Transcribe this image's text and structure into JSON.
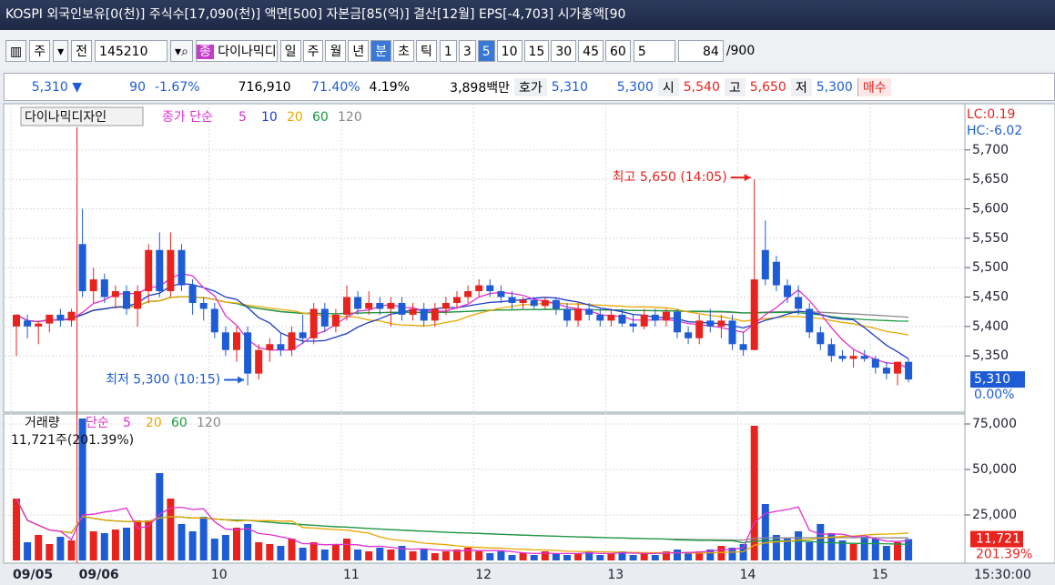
{
  "title_bar": {
    "text": "KOSPI 외국인보유[0(천)] 주식수[17,090(천)] 액면[500] 자본금[85(억)] 결산[12월] EPS[-4,703] 시가총액[90"
  },
  "toolbar": {
    "period_type": "주",
    "adj": "전",
    "code": "145210",
    "market_badge": "종",
    "name": "다이나믹디",
    "units": [
      "일",
      "주",
      "월",
      "년",
      "분",
      "초",
      "틱"
    ],
    "intervals": [
      "1",
      "3",
      "5",
      "10",
      "15",
      "30",
      "45",
      "60"
    ],
    "count_select": "5",
    "count": "84",
    "max": "/900"
  },
  "quote_bar": {
    "price": "5,310 ▼",
    "change": "90",
    "change_rate": "-1.67%",
    "volume": "716,910",
    "vol_ratio": "71.40%",
    "turnover": "4.19%",
    "amount": "3,898백만",
    "ask_label": "호가",
    "ask": "5,310",
    "bid": "5,300",
    "open_label": "시",
    "open": "5,540",
    "high_label": "고",
    "high": "5,650",
    "low_label": "저",
    "low": "5,300",
    "buy": "매수"
  },
  "chart_data": [
    {
      "type": "candlestick",
      "title": "다이나믹디자인",
      "ma_label": "종가 단순",
      "ma_periods": [
        5,
        10,
        20,
        60,
        120
      ],
      "ma_colors": [
        "#e030d0",
        "#1e3cc8",
        "#e8a800",
        "#1a9a40",
        "#888888"
      ],
      "up_color": "#e8231e",
      "down_color": "#1e5cd6",
      "lc": "LC:0.19",
      "hc": "HC:-6.02",
      "categories": [
        "09/05",
        null,
        null,
        null,
        null,
        null,
        "09/06",
        null,
        null,
        null,
        null,
        null,
        null,
        null,
        null,
        null,
        null,
        null,
        "10",
        null,
        null,
        null,
        null,
        null,
        null,
        null,
        null,
        null,
        null,
        null,
        "11",
        null,
        null,
        null,
        null,
        null,
        null,
        null,
        null,
        null,
        null,
        null,
        "12",
        null,
        null,
        null,
        null,
        null,
        null,
        null,
        null,
        null,
        null,
        null,
        "13",
        null,
        null,
        null,
        null,
        null,
        null,
        null,
        null,
        null,
        null,
        null,
        "14",
        null,
        null,
        null,
        null,
        null,
        null,
        null,
        null,
        null,
        null,
        null,
        "15",
        null,
        null,
        null
      ],
      "open": [
        5400,
        5410,
        5400,
        5405,
        5420,
        5410,
        5540,
        5460,
        5480,
        5450,
        5460,
        5430,
        5460,
        5530,
        5460,
        5530,
        5470,
        5440,
        5430,
        5390,
        5360,
        5390,
        5320,
        5360,
        5370,
        5360,
        5390,
        5380,
        5430,
        5400,
        5420,
        5450,
        5430,
        5440,
        5430,
        5440,
        5420,
        5430,
        5410,
        5430,
        5440,
        5450,
        5460,
        5470,
        5460,
        5450,
        5440,
        5445,
        5435,
        5445,
        5430,
        5410,
        5430,
        5420,
        5410,
        5420,
        5405,
        5400,
        5420,
        5410,
        5425,
        5390,
        5380,
        5410,
        5400,
        5410,
        5370,
        5360,
        5530,
        5510,
        5470,
        5450,
        5430,
        5390,
        5370,
        5350,
        5345,
        5350,
        5345,
        5330,
        5320,
        5340
      ],
      "high": [
        5420,
        5420,
        5410,
        5420,
        5430,
        5430,
        5600,
        5500,
        5490,
        5470,
        5470,
        5470,
        5540,
        5560,
        5560,
        5540,
        5480,
        5450,
        5440,
        5400,
        5400,
        5400,
        5370,
        5380,
        5390,
        5400,
        5420,
        5440,
        5440,
        5430,
        5470,
        5460,
        5460,
        5450,
        5450,
        5450,
        5440,
        5440,
        5440,
        5450,
        5460,
        5470,
        5480,
        5480,
        5470,
        5460,
        5450,
        5450,
        5450,
        5450,
        5440,
        5440,
        5440,
        5430,
        5430,
        5430,
        5420,
        5430,
        5430,
        5430,
        5430,
        5400,
        5420,
        5430,
        5420,
        5420,
        5390,
        5650,
        5580,
        5520,
        5480,
        5470,
        5440,
        5400,
        5380,
        5360,
        5360,
        5360,
        5350,
        5340,
        5340,
        5345
      ],
      "low": [
        5350,
        5380,
        5370,
        5390,
        5400,
        5400,
        5450,
        5440,
        5440,
        5430,
        5420,
        5400,
        5440,
        5450,
        5450,
        5460,
        5420,
        5410,
        5380,
        5350,
        5340,
        5300,
        5310,
        5340,
        5350,
        5350,
        5370,
        5370,
        5390,
        5390,
        5410,
        5420,
        5420,
        5420,
        5400,
        5410,
        5410,
        5400,
        5400,
        5420,
        5430,
        5440,
        5450,
        5450,
        5440,
        5430,
        5430,
        5430,
        5430,
        5420,
        5400,
        5400,
        5410,
        5400,
        5400,
        5400,
        5390,
        5395,
        5400,
        5400,
        5380,
        5370,
        5370,
        5390,
        5380,
        5360,
        5350,
        5360,
        5470,
        5460,
        5440,
        5420,
        5380,
        5360,
        5340,
        5340,
        5330,
        5340,
        5320,
        5310,
        5300,
        5305
      ],
      "close": [
        5420,
        5400,
        5405,
        5420,
        5410,
        5425,
        5460,
        5480,
        5450,
        5460,
        5430,
        5460,
        5530,
        5460,
        5530,
        5470,
        5440,
        5430,
        5390,
        5360,
        5390,
        5320,
        5360,
        5370,
        5360,
        5390,
        5380,
        5430,
        5400,
        5420,
        5450,
        5430,
        5440,
        5430,
        5440,
        5420,
        5430,
        5410,
        5430,
        5440,
        5450,
        5460,
        5470,
        5460,
        5450,
        5440,
        5445,
        5435,
        5445,
        5430,
        5410,
        5430,
        5420,
        5410,
        5420,
        5405,
        5400,
        5420,
        5410,
        5425,
        5390,
        5380,
        5410,
        5400,
        5410,
        5370,
        5360,
        5480,
        5480,
        5470,
        5450,
        5430,
        5390,
        5370,
        5350,
        5345,
        5350,
        5345,
        5330,
        5320,
        5340,
        5310
      ],
      "ylim": [
        5256,
        5777
      ],
      "yticks": [
        {
          "value": 5700,
          "label": "5,700"
        },
        {
          "value": 5650,
          "label": "5,650"
        },
        {
          "value": 5600,
          "label": "5,600"
        },
        {
          "value": 5550,
          "label": "5,550"
        },
        {
          "value": 5500,
          "label": "5,500"
        },
        {
          "value": 5450,
          "label": "5,450"
        },
        {
          "value": 5400,
          "label": "5,400"
        },
        {
          "value": 5350,
          "label": "5,350"
        }
      ],
      "current": {
        "value": 5310,
        "label": "5,310"
      },
      "current_rate": "0.00%",
      "high_annotation": "최고 5,650 (14:05)",
      "low_annotation": "최저 5,300 (10:15)",
      "time_label": "15:30:00"
    },
    {
      "type": "bar",
      "title": "거래량",
      "ma_label": "단순",
      "ma_periods": [
        5,
        20,
        60,
        120
      ],
      "ma_colors": [
        "#e030d0",
        "#e8a800",
        "#1a9a40",
        "#888888"
      ],
      "info": "11,721주(201.39%)",
      "values": [
        34000,
        10000,
        14000,
        9000,
        13000,
        11000,
        78000,
        16000,
        15000,
        17000,
        18000,
        22000,
        22000,
        48000,
        34000,
        20000,
        16000,
        24000,
        12000,
        14000,
        18000,
        20000,
        10000,
        9000,
        8000,
        12000,
        7000,
        10000,
        6000,
        9000,
        12000,
        6000,
        5000,
        7000,
        6000,
        8000,
        5000,
        6000,
        4000,
        5000,
        6000,
        7000,
        5000,
        4000,
        5000,
        3000,
        4000,
        3000,
        5000,
        4000,
        3000,
        4000,
        5000,
        3000,
        4000,
        5000,
        3000,
        4000,
        3000,
        5000,
        6000,
        4000,
        5000,
        6000,
        8000,
        7000,
        9000,
        74000,
        31000,
        14000,
        12000,
        16000,
        10000,
        20000,
        15000,
        11000,
        9000,
        13000,
        12000,
        8000,
        10000,
        11721
      ],
      "ylim": [
        0,
        80000
      ],
      "yticks": [
        {
          "value": 75000,
          "label": "75,000"
        },
        {
          "value": 50000,
          "label": "50,000"
        },
        {
          "value": 25000,
          "label": "25,000"
        }
      ],
      "current": {
        "value": 11721,
        "label": "11,721"
      },
      "current_rate": "201.39%"
    }
  ]
}
